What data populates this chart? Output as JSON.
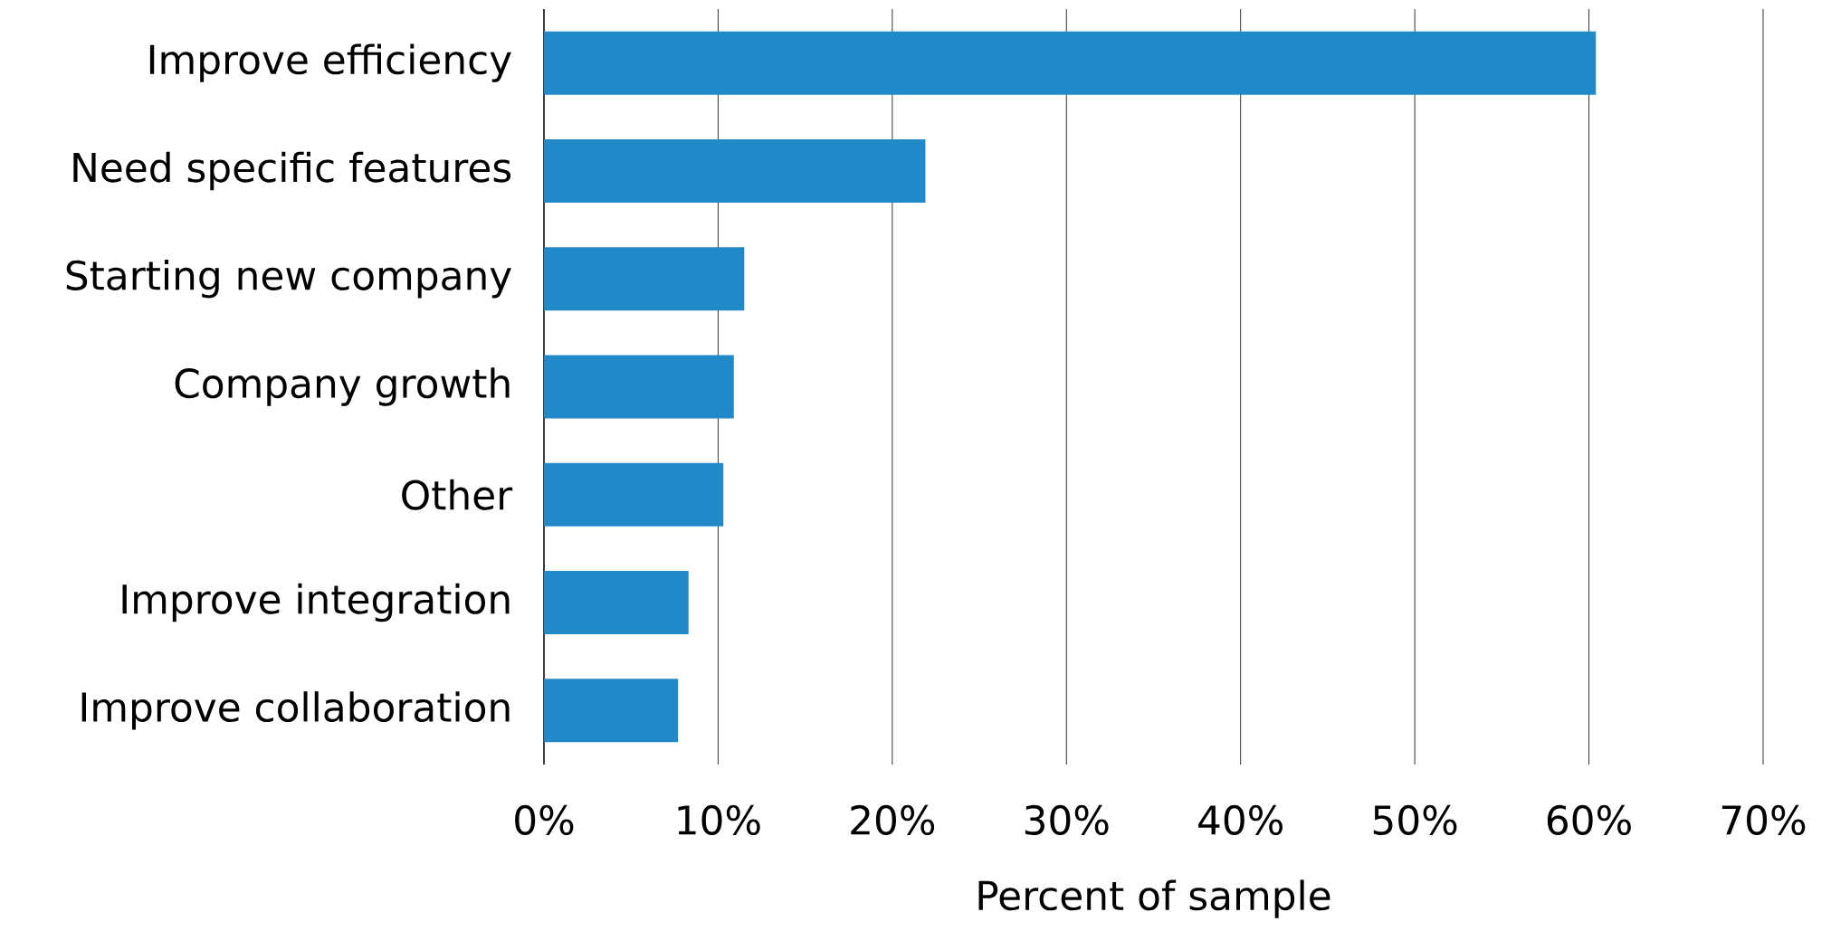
{
  "chart_data": {
    "type": "bar",
    "orientation": "horizontal",
    "xlabel": "Percent of sample",
    "categories": [
      "Improve efficiency",
      "Need specific features",
      "Starting new company",
      "Company growth",
      "Other",
      "Improve integration",
      "Improve collaboration"
    ],
    "values": [
      60.4,
      21.9,
      11.5,
      10.9,
      10.3,
      8.3,
      7.7
    ],
    "color": "#2189c8",
    "xlim": [
      0,
      70
    ],
    "xticks": [
      {
        "value": 0,
        "label": "0%"
      },
      {
        "value": 10,
        "label": "10%"
      },
      {
        "value": 20,
        "label": "20%"
      },
      {
        "value": 30,
        "label": "30%"
      },
      {
        "value": 40,
        "label": "40%"
      },
      {
        "value": 50,
        "label": "50%"
      },
      {
        "value": 60,
        "label": "60%"
      },
      {
        "value": 70,
        "label": "70%"
      }
    ],
    "grid": "x"
  }
}
